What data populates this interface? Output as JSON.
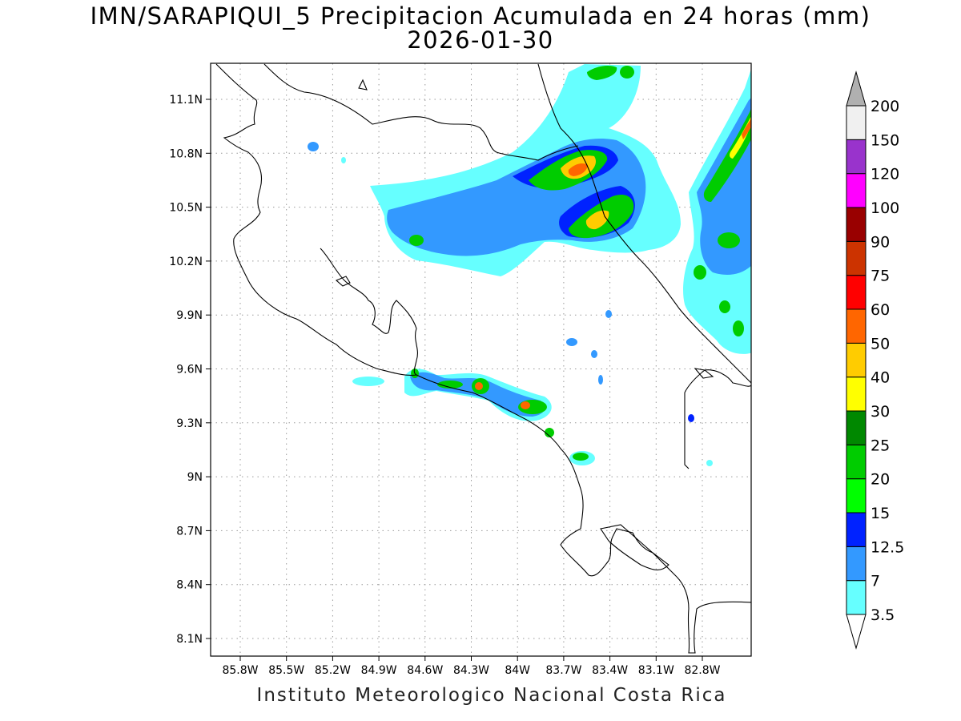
{
  "title": {
    "line1": "IMN/SARAPIQUI_5 Precipitacion Acumulada en 24 horas (mm)",
    "line2": "2026-01-30"
  },
  "credit": "Instituto Meteorologico Nacional Costa Rica",
  "map": {
    "lon_range": [
      -86.0,
      -82.6
    ],
    "lat_range": [
      8.0,
      11.2
    ],
    "lon_ticks": [
      "85.8W",
      "85.5W",
      "85.2W",
      "84.9W",
      "84.6W",
      "84.3W",
      "84W",
      "83.7W",
      "83.4W",
      "83.1W",
      "82.8W"
    ],
    "lat_ticks": [
      "11.1N",
      "10.8N",
      "10.5N",
      "10.2N",
      "9.9N",
      "9.6N",
      "9.3N",
      "9N",
      "8.7N",
      "8.4N",
      "8.1N"
    ],
    "grid": "dotted"
  },
  "colorbar": {
    "labels": [
      "3.5",
      "7",
      "12.5",
      "15",
      "20",
      "25",
      "30",
      "40",
      "50",
      "60",
      "75",
      "90",
      "100",
      "120",
      "150",
      "200"
    ],
    "colors": [
      "#66ffff",
      "#3399ff",
      "#0022ff",
      "#00ff00",
      "#00cc00",
      "#008800",
      "#ffff00",
      "#ffcc00",
      "#ff6600",
      "#ff0000",
      "#cc3300",
      "#990000",
      "#ff00ff",
      "#9933cc",
      "#f0f0f0",
      "#b0b0b0"
    ]
  }
}
